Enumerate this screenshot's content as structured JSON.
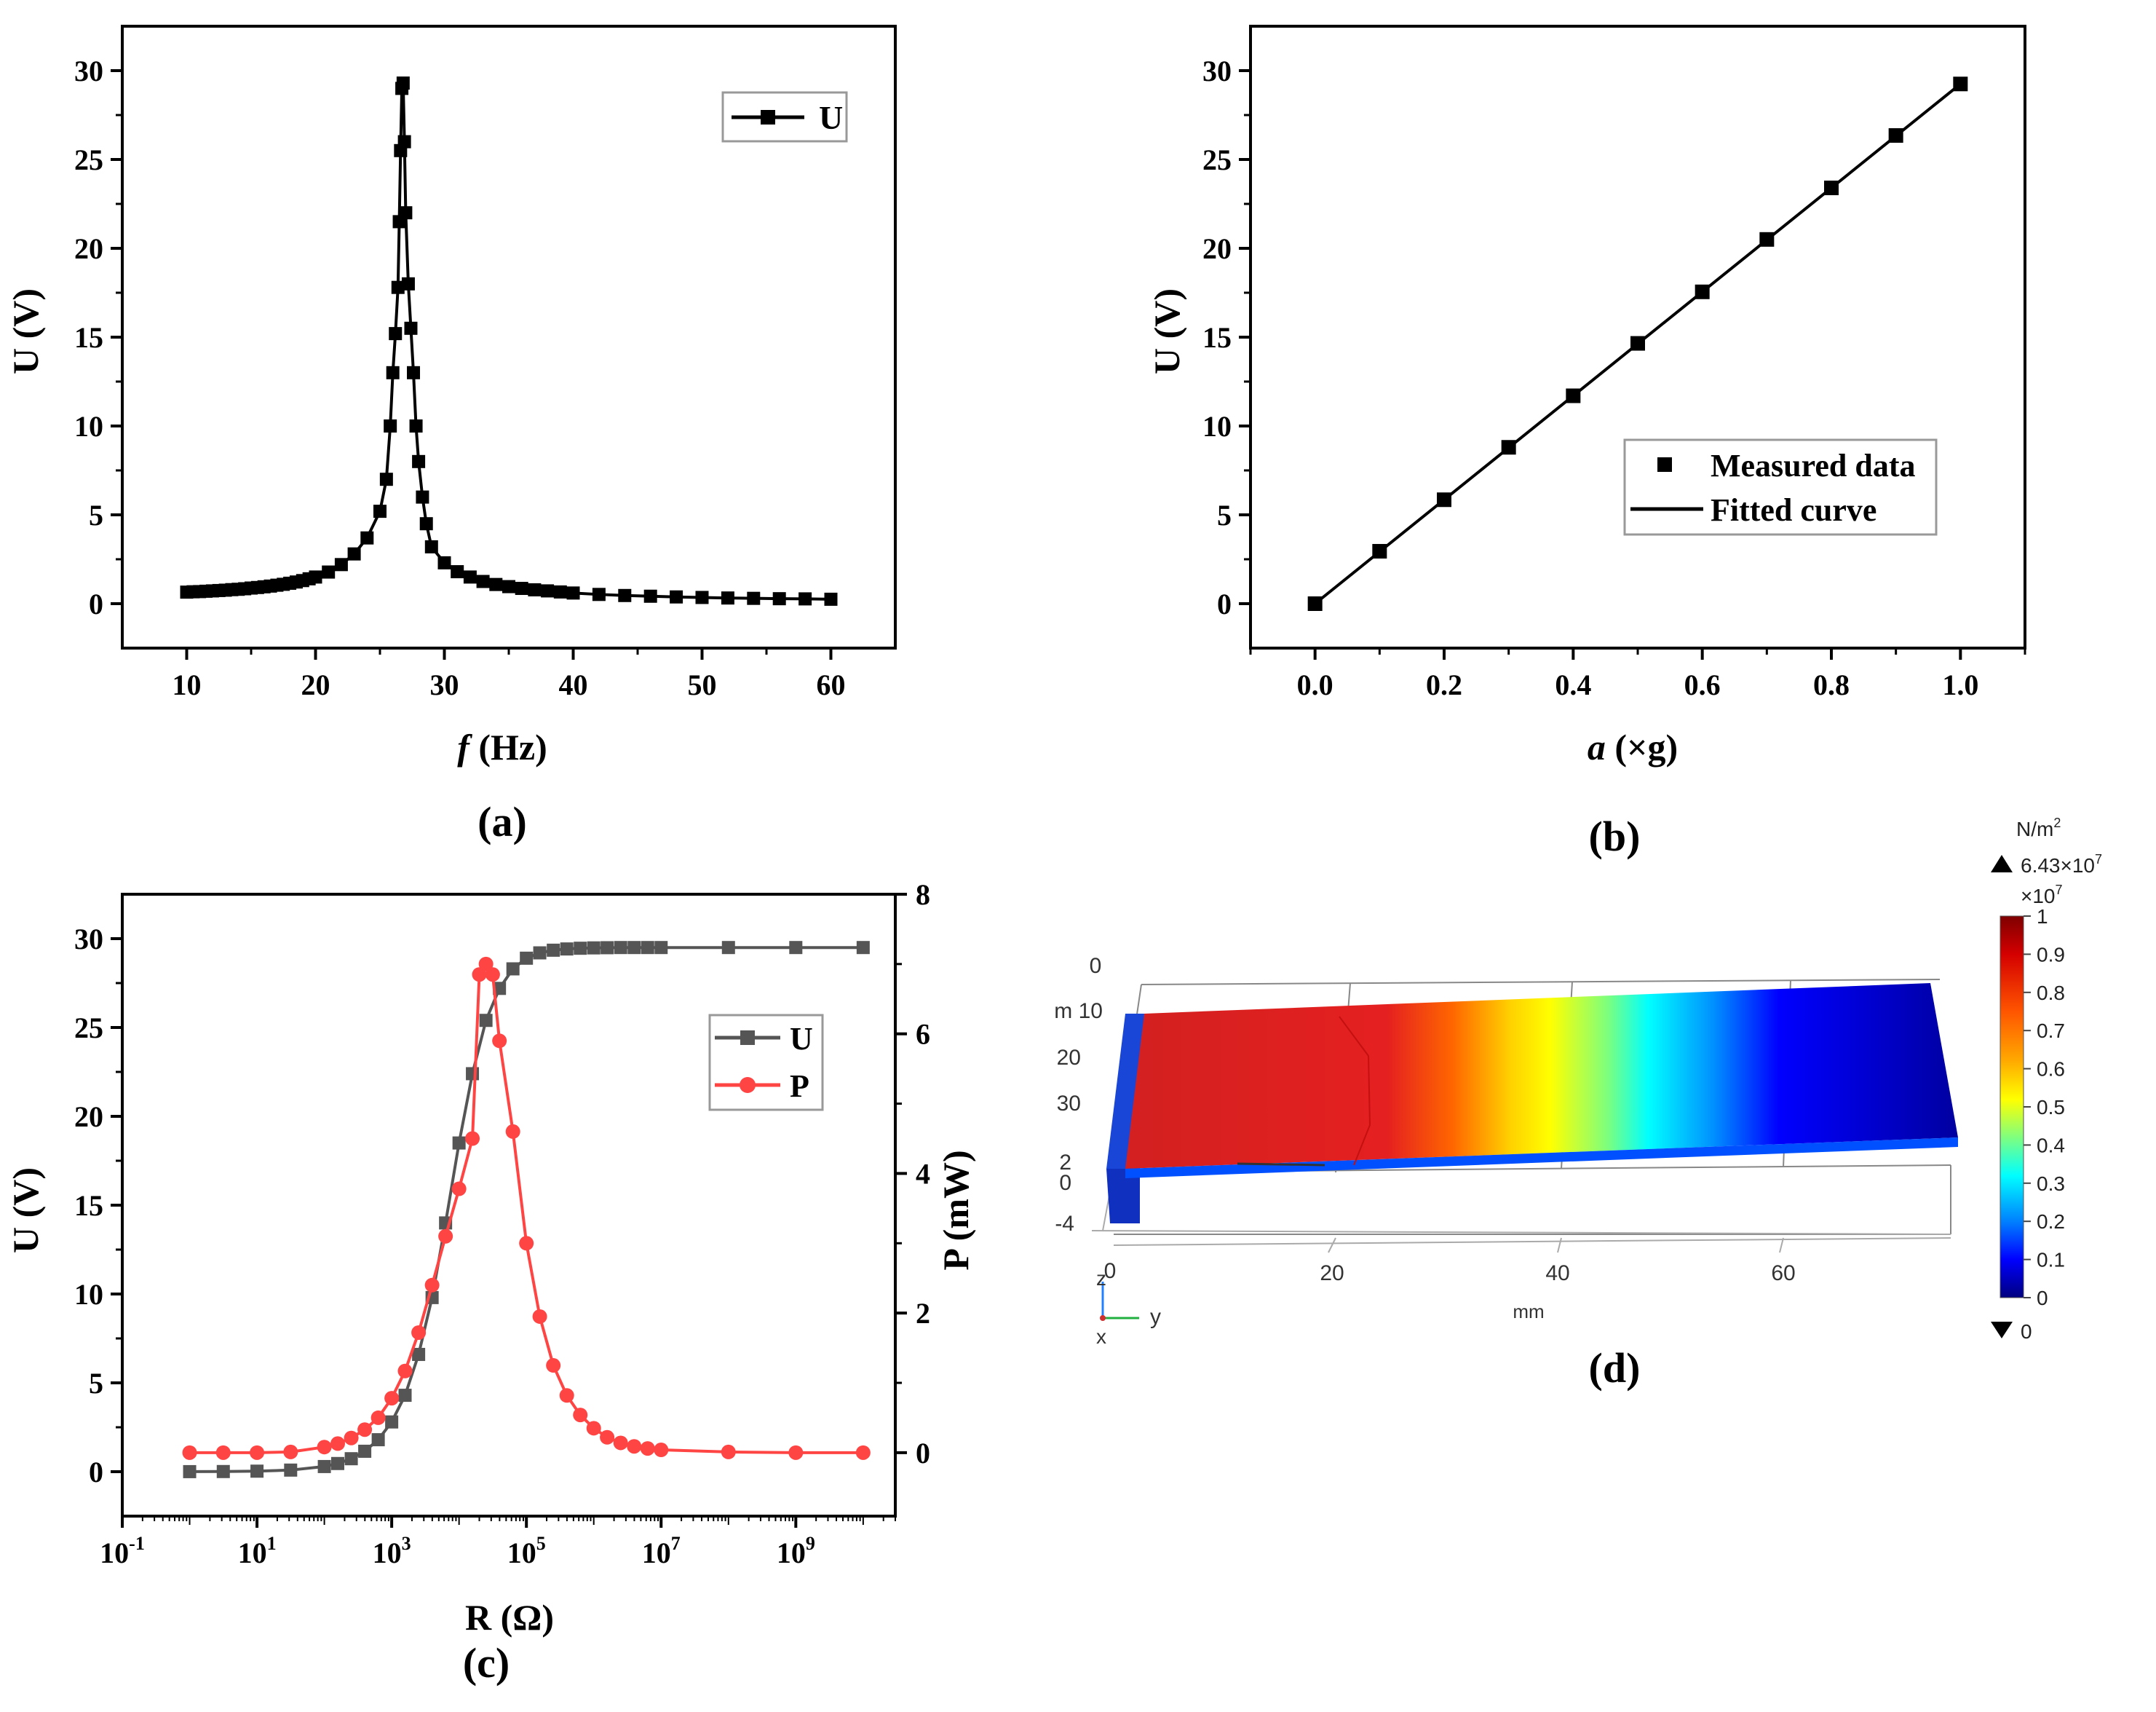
{
  "panels": {
    "a": {
      "label": "(a)",
      "chart_data": {
        "type": "line",
        "xlabel_italic": "f",
        "xlabel": " (Hz)",
        "ylabel": "U (V)",
        "xlim": [
          5,
          65
        ],
        "ylim": [
          -2.5,
          32.5
        ],
        "xticks": [
          "10",
          "20",
          "30",
          "40",
          "50",
          "60"
        ],
        "yticks": [
          "0",
          "5",
          "10",
          "15",
          "20",
          "25",
          "30"
        ],
        "legend": [
          "U"
        ],
        "legend_position": "top-right",
        "series": [
          {
            "name": "U",
            "color": "#000000",
            "marker": "square",
            "x": [
              10,
              10.5,
              11,
              11.5,
              12,
              12.5,
              13,
              13.5,
              14,
              14.5,
              15,
              15.5,
              16,
              16.5,
              17,
              17.5,
              18,
              18.5,
              19,
              19.5,
              20,
              21,
              22,
              23,
              24,
              25,
              25.5,
              25.8,
              26,
              26.2,
              26.4,
              26.5,
              26.6,
              26.7,
              26.8,
              26.9,
              27,
              27.2,
              27.4,
              27.6,
              27.8,
              28,
              28.3,
              28.6,
              29,
              30,
              31,
              32,
              33,
              34,
              35,
              36,
              37,
              38,
              39,
              40,
              42,
              44,
              46,
              48,
              50,
              52,
              54,
              56,
              58,
              60
            ],
            "y": [
              0.65,
              0.67,
              0.68,
              0.7,
              0.72,
              0.74,
              0.76,
              0.79,
              0.81,
              0.84,
              0.88,
              0.91,
              0.95,
              0.99,
              1.04,
              1.09,
              1.15,
              1.22,
              1.3,
              1.4,
              1.5,
              1.78,
              2.2,
              2.8,
              3.7,
              5.2,
              7.0,
              10.0,
              13.0,
              15.2,
              17.8,
              21.5,
              25.5,
              29.0,
              29.3,
              26.0,
              22.0,
              18.0,
              15.5,
              13.0,
              10.0,
              8.0,
              6.0,
              4.5,
              3.2,
              2.3,
              1.8,
              1.5,
              1.25,
              1.08,
              0.96,
              0.86,
              0.78,
              0.72,
              0.66,
              0.6,
              0.52,
              0.46,
              0.42,
              0.38,
              0.35,
              0.32,
              0.3,
              0.28,
              0.27,
              0.25
            ]
          }
        ]
      }
    },
    "b": {
      "label": "(b)",
      "chart_data": {
        "type": "scatter",
        "xlabel_italic": "a",
        "xlabel": " (×g)",
        "ylabel": "U (V)",
        "xlim": [
          -0.1,
          1.1
        ],
        "ylim": [
          -2.5,
          32.5
        ],
        "xticks": [
          "0.0",
          "0.2",
          "0.4",
          "0.6",
          "0.8",
          "1.0"
        ],
        "yticks": [
          "0",
          "5",
          "10",
          "15",
          "20",
          "25",
          "30"
        ],
        "legend": [
          "Measured data",
          "Fitted curve"
        ],
        "legend_position": "center-right",
        "series": [
          {
            "name": "Measured data",
            "color": "#000000",
            "marker": "square",
            "x": [
              0,
              0.1,
              0.2,
              0.3,
              0.4,
              0.5,
              0.6,
              0.7,
              0.8,
              0.9,
              1.0
            ],
            "y": [
              0,
              2.95,
              5.85,
              8.8,
              11.7,
              14.65,
              17.55,
              20.5,
              23.4,
              26.35,
              29.25
            ]
          },
          {
            "name": "Fitted curve",
            "color": "#000000",
            "marker": "none",
            "x": [
              0,
              1.0
            ],
            "y": [
              0,
              29.25
            ]
          }
        ]
      }
    },
    "c": {
      "label": "(c)",
      "chart_data": {
        "type": "line",
        "xlabel": "R (Ω)",
        "ylabel": "U (V)",
        "ylabel_right": "P (mW)",
        "x_scale": "log",
        "xlim": [
          0.1,
          30000000000
        ],
        "ylim": [
          -2.5,
          32.5
        ],
        "ylim_right": [
          -0.909,
          8
        ],
        "xticks": [
          {
            "base": "10",
            "exp": "-1",
            "value": 0.1
          },
          {
            "base": "10",
            "exp": "1",
            "value": 10
          },
          {
            "base": "10",
            "exp": "3",
            "value": 1000
          },
          {
            "base": "10",
            "exp": "5",
            "value": 100000
          },
          {
            "base": "10",
            "exp": "7",
            "value": 10000000
          },
          {
            "base": "10",
            "exp": "9",
            "value": 1000000000
          }
        ],
        "yticks": [
          "0",
          "5",
          "10",
          "15",
          "20",
          "25",
          "30"
        ],
        "yticks_right": [
          "0",
          "2",
          "4",
          "6",
          "8"
        ],
        "legend": [
          "U",
          "P"
        ],
        "legend_position": "center-right",
        "series": [
          {
            "name": "U",
            "color": "#555555",
            "marker": "square",
            "axis": "left",
            "x": [
              1,
              3.16,
              10,
              31.6,
              100,
              158,
              251,
              398,
              631,
              1000,
              1580,
              2510,
              3980,
              6310,
              10000,
              15800,
              25100,
              39800,
              63100,
              100000,
              158000,
              251000,
              398000,
              631000,
              1000000,
              1580000,
              2510000,
              3980000,
              6310000,
              10000000,
              100000000,
              1000000000,
              10000000000
            ],
            "y": [
              0.003,
              0.009,
              0.03,
              0.09,
              0.29,
              0.46,
              0.73,
              1.15,
              1.8,
              2.8,
              4.3,
              6.6,
              9.8,
              14.0,
              18.5,
              22.4,
              25.4,
              27.2,
              28.3,
              28.9,
              29.2,
              29.35,
              29.42,
              29.46,
              29.48,
              29.49,
              29.5,
              29.5,
              29.5,
              29.5,
              29.5,
              29.5,
              29.5
            ]
          },
          {
            "name": "P",
            "color": "#ff4444",
            "marker": "circle",
            "axis": "right",
            "x": [
              1,
              3.16,
              10,
              31.6,
              100,
              158,
              251,
              398,
              631,
              1000,
              1580,
              2510,
              3980,
              6310,
              10000,
              15800,
              20000,
              25100,
              31600,
              39800,
              63100,
              100000,
              158000,
              251000,
              398000,
              631000,
              1000000,
              1580000,
              2510000,
              3980000,
              6310000,
              10000000,
              100000000,
              1000000000,
              10000000000
            ],
            "y": [
              0,
              0,
              0,
              0.01,
              0.08,
              0.13,
              0.21,
              0.33,
              0.5,
              0.78,
              1.17,
              1.72,
              2.4,
              3.1,
              3.78,
              4.5,
              6.85,
              7.0,
              6.85,
              5.9,
              4.6,
              3.0,
              1.95,
              1.25,
              0.82,
              0.54,
              0.35,
              0.22,
              0.14,
              0.09,
              0.06,
              0.04,
              0.01,
              0,
              0
            ]
          }
        ]
      }
    },
    "d": {
      "label": "(d)",
      "chart_data": {
        "type": "heatmap",
        "unit": "N/m",
        "unit_sup": "2",
        "max_label": "6.43×10",
        "max_label_sup": "7",
        "scale_label": "×10",
        "scale_label_sup": "7",
        "min_label": "0",
        "colorbar_ticks": [
          "1",
          "0.9",
          "0.8",
          "0.7",
          "0.6",
          "0.5",
          "0.4",
          "0.3",
          "0.2",
          "0.1",
          "0"
        ],
        "x_ticks": [
          "0",
          "20",
          "40",
          "60"
        ],
        "x_unit": "mm",
        "y_ticks": [
          "0",
          "m 10",
          "20",
          "30"
        ],
        "z_ticks": [
          "2",
          "0",
          "-4"
        ],
        "axes_labels": {
          "z": "z",
          "y": "y",
          "x": "x"
        },
        "colors": [
          "#00007f",
          "#0000ff",
          "#00ffff",
          "#ffff00",
          "#ff6600",
          "#d42020",
          "#7f0000"
        ]
      }
    }
  }
}
